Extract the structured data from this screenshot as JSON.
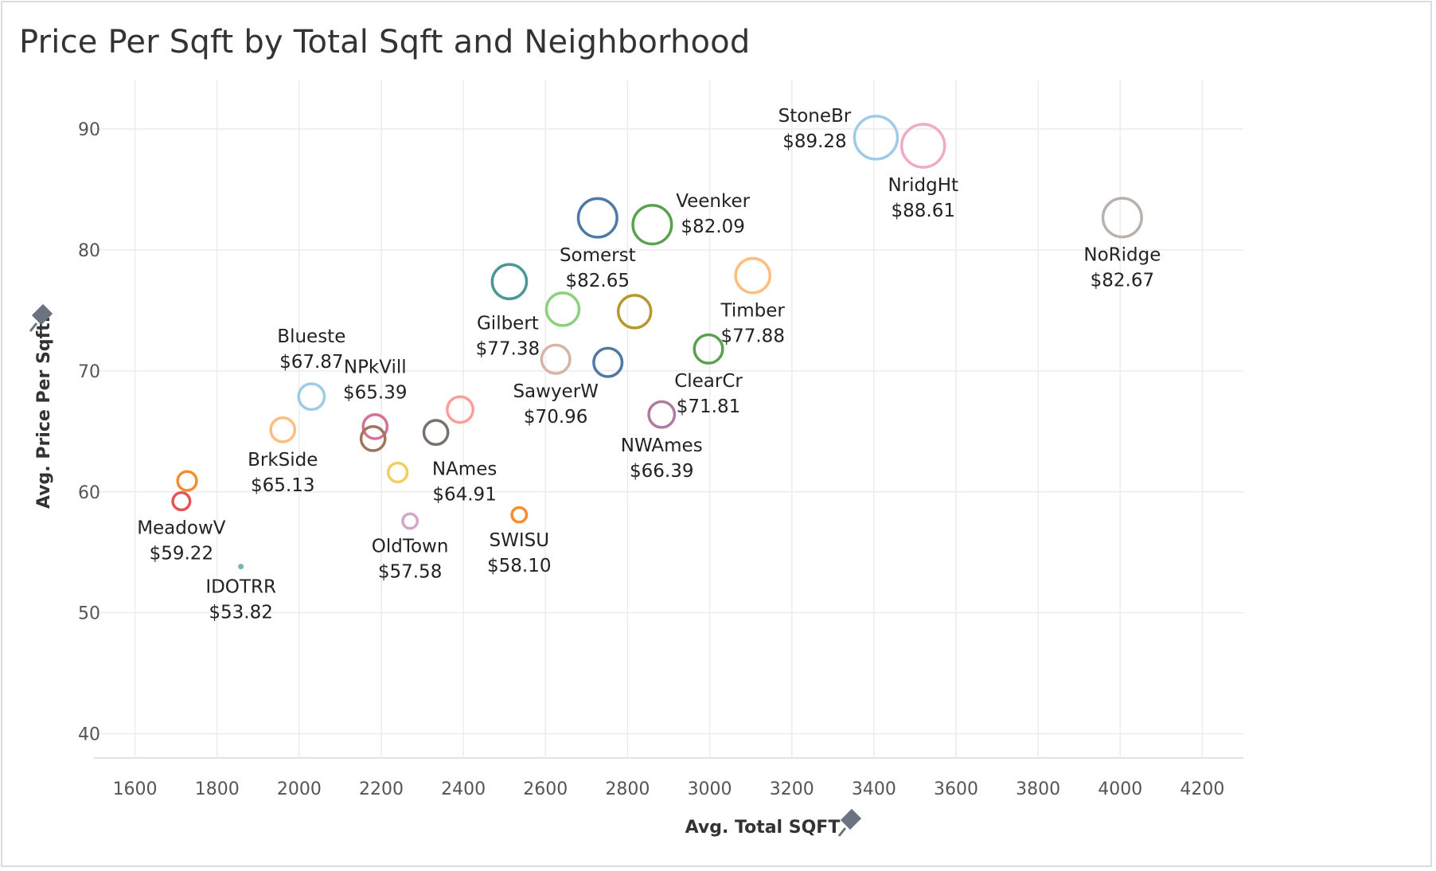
{
  "chart_data": {
    "type": "scatter",
    "title": "Price Per Sqft by Total Sqft and Neighborhood",
    "xlabel": "Avg. Total SQFT",
    "ylabel": "Avg. Price Per Sqft.",
    "xlim": [
      1500,
      4300
    ],
    "ylim": [
      38,
      95
    ],
    "xticks": [
      "1600",
      "1800",
      "2000",
      "2200",
      "2400",
      "2600",
      "2800",
      "3000",
      "3200",
      "3400",
      "3600",
      "3800",
      "4000",
      "4200"
    ],
    "yticks": [
      "40",
      "50",
      "60",
      "70",
      "80",
      "90"
    ],
    "grid": true,
    "points": [
      {
        "name": "StoneBr",
        "x": 3405,
        "y": 89.28,
        "label": "$89.28",
        "color": "#a0cbe8",
        "size": 5.0,
        "labeled": true,
        "pos": "left"
      },
      {
        "name": "NridgHt",
        "x": 3520,
        "y": 88.61,
        "label": "$88.61",
        "color": "#f1a9c8",
        "size": 5.0,
        "labeled": true,
        "pos": "below"
      },
      {
        "name": "NoRidge",
        "x": 4005,
        "y": 82.67,
        "label": "$82.67",
        "color": "#bab0ac",
        "size": 4.5,
        "labeled": true,
        "pos": "below"
      },
      {
        "name": "Somerst",
        "x": 2727,
        "y": 82.65,
        "label": "$82.65",
        "color": "#4e79a7",
        "size": 4.5,
        "labeled": true,
        "pos": "below"
      },
      {
        "name": "Veenker",
        "x": 2860,
        "y": 82.09,
        "label": "$82.09",
        "color": "#59a14f",
        "size": 4.5,
        "labeled": true,
        "pos": "right"
      },
      {
        "name": "Timber",
        "x": 3105,
        "y": 77.88,
        "label": "$77.88",
        "color": "#ffbe7d",
        "size": 4.0,
        "labeled": true,
        "pos": "below"
      },
      {
        "name": "Gilbert",
        "x": 2512,
        "y": 77.38,
        "label": "$77.38",
        "color": "#499894",
        "size": 4.0,
        "labeled": true,
        "pos": "belowleft"
      },
      {
        "name": "",
        "x": 2642,
        "y": 75.1,
        "label": "",
        "color": "#8cd17d",
        "size": 3.8,
        "labeled": false
      },
      {
        "name": "",
        "x": 2817,
        "y": 74.9,
        "label": "",
        "color": "#b6992d",
        "size": 3.8,
        "labeled": false
      },
      {
        "name": "ClearCr",
        "x": 2997,
        "y": 71.81,
        "label": "$71.81",
        "color": "#59a14f",
        "size": 3.3,
        "labeled": true,
        "pos": "below"
      },
      {
        "name": "SawyerW",
        "x": 2625,
        "y": 70.96,
        "label": "$70.96",
        "color": "#d7b5a6",
        "size": 3.3,
        "labeled": true,
        "pos": "below"
      },
      {
        "name": "",
        "x": 2752,
        "y": 70.7,
        "label": "",
        "color": "#4e79a7",
        "size": 3.3,
        "labeled": false
      },
      {
        "name": "Blueste",
        "x": 2030,
        "y": 67.87,
        "label": "$67.87",
        "color": "#a0cbe8",
        "size": 3.0,
        "labeled": true,
        "pos": "above"
      },
      {
        "name": "",
        "x": 2392,
        "y": 66.8,
        "label": "",
        "color": "#ff9d9a",
        "size": 3.0,
        "labeled": false
      },
      {
        "name": "NWAmes",
        "x": 2883,
        "y": 66.39,
        "label": "$66.39",
        "color": "#b07aa1",
        "size": 3.0,
        "labeled": true,
        "pos": "below"
      },
      {
        "name": "NPkVill",
        "x": 2185,
        "y": 65.39,
        "label": "$65.39",
        "color": "#d37295",
        "size": 2.8,
        "labeled": true,
        "pos": "above"
      },
      {
        "name": "BrkSide",
        "x": 1960,
        "y": 65.13,
        "label": "$65.13",
        "color": "#ffbe7d",
        "size": 2.8,
        "labeled": true,
        "pos": "below"
      },
      {
        "name": "NAmes",
        "x": 2333,
        "y": 64.91,
        "label": "$64.91",
        "color": "#79706e",
        "size": 2.8,
        "labeled": true,
        "pos": "belowright"
      },
      {
        "name": "",
        "x": 2180,
        "y": 64.4,
        "label": "",
        "color": "#9d7660",
        "size": 2.8,
        "labeled": false
      },
      {
        "name": "",
        "x": 2240,
        "y": 61.6,
        "label": "",
        "color": "#f1ce63",
        "size": 2.2,
        "labeled": false
      },
      {
        "name": "",
        "x": 1727,
        "y": 60.9,
        "label": "",
        "color": "#f28e2b",
        "size": 2.2,
        "labeled": false
      },
      {
        "name": "MeadowV",
        "x": 1713,
        "y": 59.22,
        "label": "$59.22",
        "color": "#e15759",
        "size": 2.0,
        "labeled": true,
        "pos": "below"
      },
      {
        "name": "SWISU",
        "x": 2536,
        "y": 58.1,
        "label": "$58.10",
        "color": "#f28e2b",
        "size": 1.7,
        "labeled": true,
        "pos": "below"
      },
      {
        "name": "OldTown",
        "x": 2270,
        "y": 57.58,
        "label": "$57.58",
        "color": "#d4a6c8",
        "size": 1.7,
        "labeled": true,
        "pos": "below"
      },
      {
        "name": "IDOTRR",
        "x": 1858,
        "y": 53.82,
        "label": "$53.82",
        "color": "#76b7b2",
        "size": 0.5,
        "labeled": true,
        "pos": "below"
      }
    ]
  }
}
